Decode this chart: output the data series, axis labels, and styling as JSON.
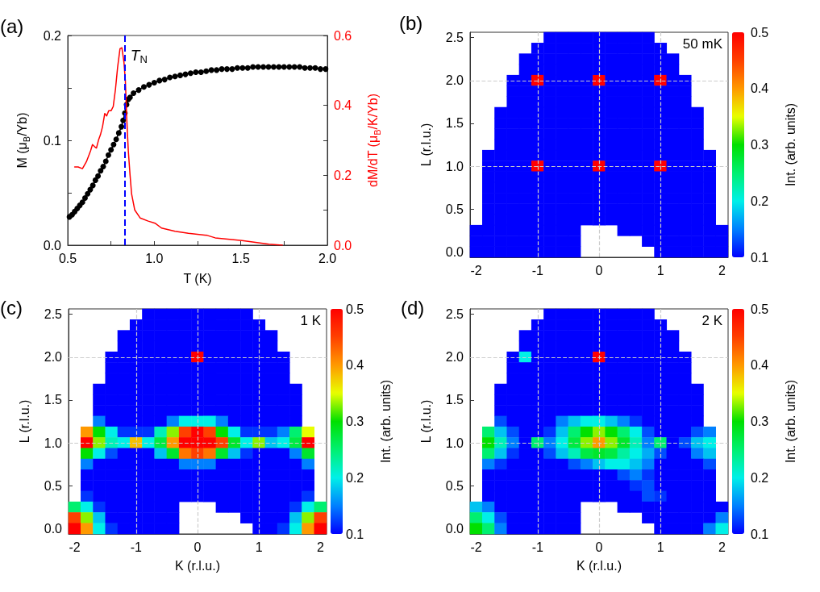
{
  "chart_data": [
    {
      "type": "line",
      "title": "(a)",
      "xlabel": "T (K)",
      "ylabel": "M (μ$_{B}$/Yb)",
      "y2label": "dM/dT (μ$_{B}$/K/Yb)",
      "xlim": [
        0.5,
        2.0
      ],
      "xticks": [
        0.5,
        {
          "value": 0.75,
          "label": null
        },
        {
          "value": 1,
          "label": "1.0"
        },
        {
          "value": 1.25,
          "label": null
        },
        1.5,
        {
          "value": 1.75,
          "label": null
        },
        {
          "value": 2,
          "label": "2.0"
        }
      ],
      "ylim": [
        0,
        0.2
      ],
      "yticks": [
        {
          "value": 0,
          "label": "0.0"
        },
        {
          "value": 0.05,
          "label": null
        },
        0.1,
        {
          "value": 0.15,
          "label": null
        },
        0.2
      ],
      "y2lim": [
        0,
        0.6
      ],
      "y2ticks": [
        {
          "value": 0,
          "label": "0.0"
        },
        {
          "value": 0.1,
          "label": null
        },
        0.2,
        {
          "value": 0.3,
          "label": null
        },
        0.4,
        {
          "value": 0.5,
          "label": null
        },
        0.6
      ],
      "series": [
        {
          "color": "#000000",
          "marker": "circle",
          "x": [
            0.51,
            0.525,
            0.54,
            0.555,
            0.57,
            0.585,
            0.6,
            0.615,
            0.63,
            0.645,
            0.66,
            0.675,
            0.69,
            0.705,
            0.72,
            0.735,
            0.75,
            0.765,
            0.78,
            0.795,
            0.81,
            0.82,
            0.83,
            0.84,
            0.85,
            0.86,
            0.88,
            0.91,
            0.94,
            0.97,
            1.0,
            1.03,
            1.06,
            1.09,
            1.12,
            1.15,
            1.18,
            1.21,
            1.24,
            1.27,
            1.3,
            1.33,
            1.36,
            1.39,
            1.42,
            1.45,
            1.48,
            1.51,
            1.54,
            1.57,
            1.6,
            1.63,
            1.66,
            1.69,
            1.72,
            1.75,
            1.78,
            1.81,
            1.84,
            1.87,
            1.9,
            1.93,
            1.96,
            1.99
          ],
          "values": [
            0.027,
            0.029,
            0.032,
            0.035,
            0.038,
            0.041,
            0.045,
            0.049,
            0.053,
            0.057,
            0.062,
            0.066,
            0.071,
            0.075,
            0.08,
            0.086,
            0.091,
            0.096,
            0.101,
            0.107,
            0.113,
            0.119,
            0.126,
            0.134,
            0.139,
            0.141,
            0.145,
            0.148,
            0.151,
            0.153,
            0.155,
            0.157,
            0.158,
            0.16,
            0.161,
            0.162,
            0.163,
            0.164,
            0.165,
            0.165,
            0.166,
            0.167,
            0.167,
            0.168,
            0.168,
            0.168,
            0.169,
            0.169,
            0.169,
            0.17,
            0.17,
            0.17,
            0.17,
            0.17,
            0.17,
            0.17,
            0.17,
            0.17,
            0.17,
            0.169,
            0.169,
            0.169,
            0.168,
            0.168
          ]
        },
        {
          "color": "#ff0000",
          "marker": "none",
          "axis": "y2",
          "x": [
            0.54,
            0.56,
            0.585,
            0.608,
            0.632,
            0.643,
            0.655,
            0.666,
            0.678,
            0.689,
            0.701,
            0.714,
            0.725,
            0.737,
            0.751,
            0.763,
            0.776,
            0.788,
            0.802,
            0.813,
            0.825,
            0.833,
            0.841,
            0.85,
            0.86,
            0.869,
            0.887,
            0.918,
            0.965,
            1.004,
            1.042,
            1.12,
            1.197,
            1.306,
            1.352,
            1.507,
            1.585,
            1.662,
            1.74
          ],
          "values": [
            0.224,
            0.224,
            0.219,
            0.239,
            0.27,
            0.288,
            0.282,
            0.278,
            0.301,
            0.316,
            0.339,
            0.377,
            0.37,
            0.385,
            0.385,
            0.397,
            0.447,
            0.508,
            0.562,
            0.565,
            0.523,
            0.47,
            0.362,
            0.27,
            0.201,
            0.147,
            0.101,
            0.078,
            0.069,
            0.063,
            0.049,
            0.04,
            0.034,
            0.028,
            0.021,
            0.013,
            0.008,
            0.003,
            0
          ]
        }
      ],
      "ref_lines": [
        {
          "axis": "x",
          "value": 0.83,
          "label": "T$_{N}$",
          "color": "#0000ff",
          "line_style": "dashed"
        }
      ]
    },
    {
      "type": "heatmap",
      "title": "(b)",
      "ylabel": "L (r.l.u.)",
      "clabel": "Int. (arb. units)",
      "annotations": [
        "50 mK"
      ],
      "categories": [
        "-2",
        null,
        null,
        null,
        null,
        "-1",
        null,
        null,
        null,
        null,
        "0",
        null,
        null,
        null,
        null,
        "1",
        null,
        null,
        null,
        null,
        "2"
      ],
      "y_categories": [
        "2.5",
        null,
        null,
        null,
        "2.0",
        null,
        null,
        null,
        "1.5",
        null,
        null,
        null,
        "1.0",
        null,
        null,
        null,
        "0.5",
        null,
        null,
        null,
        "0.0"
      ],
      "clim": [
        0.1,
        0.5
      ],
      "cticks": [
        0.1,
        0.2,
        0.3,
        0.4,
        0.5
      ],
      "ref_lines": [
        {
          "axis": "x",
          "value": "-1",
          "color": "#cccccc",
          "line_style": "dashed"
        },
        {
          "axis": "x",
          "value": "0",
          "color": "#cccccc",
          "line_style": "dashed"
        },
        {
          "axis": "x",
          "value": "1",
          "color": "#cccccc",
          "line_style": "dashed"
        },
        {
          "axis": "y",
          "value": "1.0",
          "color": "#cccccc",
          "line_style": "dashed"
        },
        {
          "axis": "y",
          "value": "2.0",
          "color": "#cccccc",
          "line_style": "dashed"
        }
      ],
      "cells": [
        [
          null,
          null,
          null,
          null,
          null,
          null,
          0.1,
          0.1,
          0.1,
          0.1,
          0.1,
          0.1,
          0.1,
          0.1,
          0.1,
          null,
          null,
          null,
          null,
          null,
          null
        ],
        [
          null,
          null,
          null,
          null,
          null,
          0.1,
          0.1,
          0.1,
          0.1,
          0.1,
          0.1,
          0.1,
          0.1,
          0.1,
          0.1,
          0.1,
          null,
          null,
          null,
          null,
          null
        ],
        [
          null,
          null,
          null,
          null,
          0.1,
          0.1,
          0.1,
          0.1,
          0.1,
          0.1,
          0.1,
          0.1,
          0.1,
          0.1,
          0.1,
          0.1,
          0.1,
          null,
          null,
          null,
          null
        ],
        [
          null,
          null,
          null,
          null,
          0.1,
          0.1,
          0.1,
          0.1,
          0.1,
          0.1,
          0.1,
          0.1,
          0.1,
          0.1,
          0.1,
          0.1,
          0.1,
          null,
          null,
          null,
          null
        ],
        [
          null,
          null,
          null,
          0.1,
          0.1,
          0.5,
          0.1,
          0.1,
          0.1,
          0.1,
          0.5,
          0.1,
          0.1,
          0.1,
          0.1,
          0.5,
          0.1,
          0.1,
          null,
          null,
          null
        ],
        [
          null,
          null,
          null,
          0.1,
          0.1,
          0.1,
          0.1,
          0.1,
          0.1,
          0.1,
          0.1,
          0.1,
          0.1,
          0.1,
          0.1,
          0.1,
          0.1,
          0.1,
          null,
          null,
          null
        ],
        [
          null,
          null,
          null,
          0.1,
          0.1,
          0.1,
          0.1,
          0.1,
          0.1,
          0.1,
          0.1,
          0.1,
          0.1,
          0.1,
          0.1,
          0.1,
          0.1,
          0.1,
          null,
          null,
          null
        ],
        [
          null,
          null,
          0.1,
          0.1,
          0.1,
          0.1,
          0.1,
          0.1,
          0.1,
          0.1,
          0.1,
          0.1,
          0.1,
          0.1,
          0.1,
          0.1,
          0.1,
          0.1,
          0.1,
          null,
          null
        ],
        [
          null,
          null,
          0.1,
          0.1,
          0.1,
          0.1,
          0.1,
          0.1,
          0.1,
          0.1,
          0.1,
          0.1,
          0.1,
          0.1,
          0.1,
          0.1,
          0.1,
          0.1,
          0.1,
          null,
          null
        ],
        [
          null,
          null,
          0.1,
          0.1,
          0.1,
          0.1,
          0.1,
          0.1,
          0.1,
          0.1,
          0.1,
          0.1,
          0.1,
          0.1,
          0.1,
          0.1,
          0.1,
          0.1,
          0.1,
          null,
          null
        ],
        [
          null,
          null,
          0.1,
          0.1,
          0.1,
          0.1,
          0.1,
          0.1,
          0.1,
          0.1,
          0.1,
          0.1,
          0.1,
          0.1,
          0.1,
          0.1,
          0.1,
          0.1,
          0.1,
          null,
          null
        ],
        [
          null,
          0.1,
          0.1,
          0.1,
          0.1,
          0.1,
          0.1,
          0.1,
          0.1,
          0.1,
          0.1,
          0.1,
          0.1,
          0.1,
          0.1,
          0.1,
          0.1,
          0.1,
          0.1,
          0.1,
          null
        ],
        [
          null,
          0.1,
          0.1,
          0.1,
          0.1,
          0.5,
          0.1,
          0.1,
          0.1,
          0.1,
          0.5,
          0.1,
          0.1,
          0.1,
          0.1,
          0.5,
          0.1,
          0.1,
          0.1,
          0.1,
          null
        ],
        [
          null,
          0.1,
          0.1,
          0.1,
          0.1,
          0.1,
          0.1,
          0.1,
          0.1,
          0.1,
          0.1,
          0.1,
          0.1,
          0.1,
          0.1,
          0.1,
          0.1,
          0.1,
          0.1,
          0.1,
          null
        ],
        [
          null,
          0.1,
          0.1,
          0.1,
          0.1,
          0.1,
          0.1,
          0.1,
          0.1,
          0.1,
          0.1,
          0.1,
          0.1,
          0.1,
          0.1,
          0.1,
          0.1,
          0.1,
          0.1,
          0.1,
          null
        ],
        [
          null,
          0.1,
          0.1,
          0.1,
          0.1,
          0.1,
          0.1,
          0.1,
          0.1,
          0.1,
          0.1,
          0.1,
          0.1,
          0.1,
          0.1,
          0.1,
          0.1,
          0.1,
          0.1,
          0.1,
          null
        ],
        [
          null,
          0.1,
          0.1,
          0.1,
          0.1,
          0.1,
          0.1,
          0.1,
          0.1,
          0.1,
          0.1,
          0.1,
          0.1,
          0.1,
          0.1,
          0.1,
          0.1,
          0.1,
          0.1,
          0.1,
          null
        ],
        [
          null,
          0.1,
          0.1,
          0.1,
          0.1,
          0.1,
          0.1,
          0.1,
          0.1,
          0.1,
          0.1,
          0.1,
          0.1,
          0.1,
          0.1,
          0.1,
          0.1,
          0.1,
          0.1,
          0.1,
          null
        ],
        [
          0.1,
          0.1,
          0.1,
          0.1,
          0.1,
          0.1,
          0.1,
          0.1,
          0.1,
          null,
          null,
          null,
          0.1,
          0.1,
          0.1,
          0.1,
          0.1,
          0.1,
          0.1,
          0.1,
          0.1
        ],
        [
          0.1,
          0.1,
          0.1,
          0.1,
          0.1,
          0.1,
          0.1,
          0.1,
          0.1,
          null,
          null,
          null,
          null,
          null,
          0.1,
          0.1,
          0.1,
          0.1,
          0.1,
          0.1,
          0.1
        ],
        [
          0.1,
          0.1,
          0.1,
          0.1,
          0.1,
          0.1,
          0.1,
          0.1,
          0.1,
          null,
          null,
          null,
          null,
          null,
          null,
          0.1,
          0.1,
          0.1,
          0.1,
          0.1,
          0.1
        ]
      ]
    },
    {
      "type": "heatmap",
      "title": "(c)",
      "xlabel": "K (r.l.u.)",
      "ylabel": "L (r.l.u.)",
      "clabel": "Int. (arb. units)",
      "annotations": [
        "1 K"
      ],
      "categories": [
        "-2",
        null,
        null,
        null,
        null,
        "-1",
        null,
        null,
        null,
        null,
        "0",
        null,
        null,
        null,
        null,
        "1",
        null,
        null,
        null,
        null,
        "2"
      ],
      "y_categories": [
        "2.5",
        null,
        null,
        null,
        "2.0",
        null,
        null,
        null,
        "1.5",
        null,
        null,
        null,
        "1.0",
        null,
        null,
        null,
        "0.5",
        null,
        null,
        null,
        "0.0"
      ],
      "clim": [
        0.1,
        0.5
      ],
      "cticks": [
        0.1,
        0.2,
        0.3,
        0.4,
        0.5
      ],
      "ref_lines": [
        {
          "axis": "x",
          "value": "-1",
          "color": "#cccccc",
          "line_style": "dashed"
        },
        {
          "axis": "x",
          "value": "0",
          "color": "#cccccc",
          "line_style": "dashed"
        },
        {
          "axis": "x",
          "value": "1",
          "color": "#cccccc",
          "line_style": "dashed"
        },
        {
          "axis": "y",
          "value": "1.0",
          "color": "#cccccc",
          "line_style": "dashed"
        },
        {
          "axis": "y",
          "value": "2.0",
          "color": "#cccccc",
          "line_style": "dashed"
        }
      ],
      "cells": [
        [
          null,
          null,
          null,
          null,
          null,
          null,
          0.1,
          0.1,
          0.1,
          0.1,
          0.1,
          0.1,
          0.1,
          0.1,
          0.1,
          null,
          null,
          null,
          null,
          null,
          null
        ],
        [
          null,
          null,
          null,
          null,
          null,
          0.1,
          0.1,
          0.1,
          0.1,
          0.1,
          0.1,
          0.1,
          0.1,
          0.1,
          0.1,
          0.1,
          null,
          null,
          null,
          null,
          null
        ],
        [
          null,
          null,
          null,
          null,
          0.1,
          0.1,
          0.1,
          0.1,
          0.1,
          0.1,
          0.1,
          0.1,
          0.1,
          0.1,
          0.1,
          0.1,
          0.1,
          null,
          null,
          null,
          null
        ],
        [
          null,
          null,
          null,
          null,
          0.1,
          0.1,
          0.1,
          0.1,
          0.1,
          0.1,
          0.1,
          0.1,
          0.1,
          0.1,
          0.1,
          0.1,
          0.1,
          null,
          null,
          null,
          null
        ],
        [
          null,
          null,
          null,
          0.1,
          0.1,
          0.1,
          0.1,
          0.1,
          0.1,
          0.1,
          0.5,
          0.1,
          0.1,
          0.1,
          0.1,
          0.1,
          0.1,
          0.1,
          null,
          null,
          null
        ],
        [
          null,
          null,
          null,
          0.1,
          0.1,
          0.1,
          0.1,
          0.1,
          0.1,
          0.1,
          0.1,
          0.1,
          0.1,
          0.1,
          0.1,
          0.1,
          0.1,
          0.1,
          null,
          null,
          null
        ],
        [
          null,
          null,
          null,
          0.1,
          0.1,
          0.1,
          0.1,
          0.1,
          0.1,
          0.1,
          0.1,
          0.1,
          0.1,
          0.1,
          0.1,
          0.1,
          0.1,
          0.1,
          null,
          null,
          null
        ],
        [
          null,
          null,
          0.1,
          0.1,
          0.1,
          0.1,
          0.1,
          0.1,
          0.1,
          0.1,
          0.1,
          0.1,
          0.1,
          0.1,
          0.1,
          0.1,
          0.1,
          0.1,
          0.1,
          null,
          null
        ],
        [
          null,
          null,
          0.1,
          0.1,
          0.1,
          0.1,
          0.1,
          0.1,
          0.1,
          0.1,
          0.1,
          0.1,
          0.1,
          0.1,
          0.1,
          0.1,
          0.1,
          0.1,
          0.1,
          null,
          null
        ],
        [
          null,
          null,
          0.1,
          0.1,
          0.1,
          0.1,
          0.1,
          0.1,
          0.1,
          0.1,
          0.1,
          0.1,
          0.1,
          0.1,
          0.1,
          0.1,
          0.1,
          0.1,
          0.1,
          null,
          null
        ],
        [
          null,
          null,
          0.15,
          0.1,
          0.1,
          0.1,
          0.1,
          0.1,
          0.15,
          0.2,
          0.2,
          0.2,
          0.15,
          0.1,
          0.1,
          0.1,
          0.1,
          0.1,
          0.1,
          null,
          null
        ],
        [
          null,
          0.4,
          0.3,
          0.2,
          0.12,
          0.12,
          0.12,
          0.22,
          0.33,
          0.45,
          0.5,
          0.45,
          0.3,
          0.2,
          0.12,
          0.12,
          0.12,
          0.15,
          0.25,
          0.35,
          null
        ],
        [
          null,
          0.5,
          0.33,
          0.22,
          0.2,
          0.38,
          0.2,
          0.27,
          0.4,
          0.5,
          0.5,
          0.5,
          0.45,
          0.28,
          0.2,
          0.33,
          0.18,
          0.2,
          0.27,
          0.5,
          null
        ],
        [
          null,
          0.3,
          0.2,
          0.13,
          0.1,
          0.1,
          0.1,
          0.18,
          0.28,
          0.42,
          0.45,
          0.42,
          0.28,
          0.18,
          0.12,
          0.1,
          0.1,
          0.1,
          0.15,
          0.28,
          null
        ],
        [
          null,
          0.15,
          0.1,
          0.1,
          0.1,
          0.1,
          0.1,
          0.1,
          0.1,
          0.15,
          0.15,
          0.15,
          0.1,
          0.1,
          0.1,
          0.1,
          0.1,
          0.1,
          0.1,
          0.15,
          null
        ],
        [
          null,
          0.1,
          0.1,
          0.1,
          0.1,
          0.1,
          0.1,
          0.1,
          0.1,
          0.1,
          0.1,
          0.1,
          0.1,
          0.1,
          0.1,
          0.1,
          0.1,
          0.1,
          0.1,
          0.1,
          null
        ],
        [
          null,
          0.1,
          0.1,
          0.1,
          0.1,
          0.1,
          0.1,
          0.1,
          0.1,
          0.1,
          0.1,
          0.1,
          0.1,
          0.1,
          0.1,
          0.1,
          0.1,
          0.1,
          0.1,
          0.1,
          null
        ],
        [
          null,
          0.12,
          0.1,
          0.1,
          0.1,
          0.1,
          0.1,
          0.1,
          0.1,
          0.1,
          0.1,
          0.1,
          0.1,
          0.1,
          0.1,
          0.1,
          0.1,
          0.1,
          0.1,
          0.12,
          null
        ],
        [
          0.25,
          0.2,
          0.12,
          0.1,
          0.1,
          0.1,
          0.1,
          0.1,
          0.1,
          null,
          null,
          null,
          0.1,
          0.1,
          0.1,
          0.1,
          0.1,
          0.1,
          0.12,
          0.2,
          0.25
        ],
        [
          0.45,
          0.33,
          0.18,
          0.1,
          0.1,
          0.1,
          0.1,
          0.1,
          0.1,
          null,
          null,
          null,
          null,
          null,
          0.1,
          0.1,
          0.1,
          0.1,
          0.18,
          0.33,
          0.45
        ],
        [
          0.5,
          0.4,
          0.2,
          0.12,
          0.1,
          0.1,
          0.1,
          0.1,
          0.1,
          null,
          null,
          null,
          null,
          null,
          null,
          0.1,
          0.1,
          0.12,
          0.2,
          0.4,
          0.5
        ]
      ]
    },
    {
      "type": "heatmap",
      "title": "(d)",
      "xlabel": "K (r.l.u.)",
      "ylabel": "L (r.l.u.)",
      "clabel": "Int. (arb. units)",
      "annotations": [
        "2 K"
      ],
      "categories": [
        "-2",
        null,
        null,
        null,
        null,
        "-1",
        null,
        null,
        null,
        null,
        "0",
        null,
        null,
        null,
        null,
        "1",
        null,
        null,
        null,
        null,
        "2"
      ],
      "y_categories": [
        "2.5",
        null,
        null,
        null,
        "2.0",
        null,
        null,
        null,
        "1.5",
        null,
        null,
        null,
        "1.0",
        null,
        null,
        null,
        "0.5",
        null,
        null,
        null,
        "0.0"
      ],
      "clim": [
        0.1,
        0.5
      ],
      "cticks": [
        0.1,
        0.2,
        0.3,
        0.4,
        0.5
      ],
      "ref_lines": [
        {
          "axis": "x",
          "value": "-1",
          "color": "#cccccc",
          "line_style": "dashed"
        },
        {
          "axis": "x",
          "value": "0",
          "color": "#cccccc",
          "line_style": "dashed"
        },
        {
          "axis": "x",
          "value": "1",
          "color": "#cccccc",
          "line_style": "dashed"
        },
        {
          "axis": "y",
          "value": "1.0",
          "color": "#cccccc",
          "line_style": "dashed"
        },
        {
          "axis": "y",
          "value": "2.0",
          "color": "#cccccc",
          "line_style": "dashed"
        }
      ],
      "cells": [
        [
          null,
          null,
          null,
          null,
          null,
          null,
          0.1,
          0.1,
          0.1,
          0.1,
          0.1,
          0.1,
          0.1,
          0.1,
          0.1,
          null,
          null,
          null,
          null,
          null,
          null
        ],
        [
          null,
          null,
          null,
          null,
          null,
          0.1,
          0.1,
          0.1,
          0.1,
          0.1,
          0.1,
          0.1,
          0.1,
          0.1,
          0.1,
          0.1,
          null,
          null,
          null,
          null,
          null
        ],
        [
          null,
          null,
          null,
          null,
          0.1,
          0.1,
          0.1,
          0.1,
          0.1,
          0.1,
          0.1,
          0.1,
          0.1,
          0.1,
          0.1,
          0.1,
          0.1,
          null,
          null,
          null,
          null
        ],
        [
          null,
          null,
          null,
          null,
          0.1,
          0.1,
          0.1,
          0.1,
          0.1,
          0.1,
          0.1,
          0.1,
          0.1,
          0.1,
          0.1,
          0.1,
          0.1,
          null,
          null,
          null,
          null
        ],
        [
          null,
          null,
          null,
          0.1,
          0.2,
          0.1,
          0.1,
          0.1,
          0.1,
          0.1,
          0.5,
          0.1,
          0.1,
          0.1,
          0.1,
          0.1,
          0.1,
          0.1,
          null,
          null,
          null
        ],
        [
          null,
          null,
          null,
          0.1,
          0.1,
          0.1,
          0.1,
          0.1,
          0.1,
          0.1,
          0.1,
          0.1,
          0.1,
          0.1,
          0.1,
          0.1,
          0.1,
          0.1,
          null,
          null,
          null
        ],
        [
          null,
          null,
          null,
          0.1,
          0.1,
          0.1,
          0.1,
          0.1,
          0.1,
          0.1,
          0.1,
          0.1,
          0.1,
          0.1,
          0.1,
          0.1,
          0.1,
          0.1,
          null,
          null,
          null
        ],
        [
          null,
          null,
          0.1,
          0.1,
          0.1,
          0.1,
          0.1,
          0.1,
          0.1,
          0.1,
          0.1,
          0.1,
          0.1,
          0.1,
          0.1,
          0.1,
          0.1,
          0.1,
          0.1,
          null,
          null
        ],
        [
          null,
          null,
          0.1,
          0.1,
          0.1,
          0.1,
          0.1,
          0.1,
          0.1,
          0.1,
          0.1,
          0.1,
          0.1,
          0.1,
          0.1,
          0.1,
          0.1,
          0.1,
          0.1,
          null,
          null
        ],
        [
          null,
          null,
          0.1,
          0.1,
          0.1,
          0.1,
          0.1,
          0.1,
          0.1,
          0.1,
          0.1,
          0.1,
          0.1,
          0.1,
          0.1,
          0.1,
          0.1,
          0.1,
          0.1,
          null,
          null
        ],
        [
          null,
          null,
          0.13,
          0.1,
          0.1,
          0.1,
          0.1,
          0.15,
          0.18,
          0.2,
          0.2,
          0.18,
          0.15,
          0.12,
          0.1,
          0.1,
          0.1,
          0.1,
          0.1,
          null,
          null
        ],
        [
          null,
          0.25,
          0.18,
          0.13,
          0.1,
          0.1,
          0.12,
          0.18,
          0.25,
          0.3,
          0.33,
          0.3,
          0.25,
          0.2,
          0.13,
          0.1,
          0.1,
          0.1,
          0.13,
          0.15,
          null
        ],
        [
          null,
          0.3,
          0.22,
          0.15,
          0.1,
          0.25,
          0.15,
          0.2,
          0.27,
          0.33,
          0.4,
          0.33,
          0.28,
          0.22,
          0.15,
          0.25,
          0.1,
          0.13,
          0.18,
          0.2,
          null
        ],
        [
          null,
          0.25,
          0.18,
          0.12,
          0.1,
          0.1,
          0.13,
          0.18,
          0.22,
          0.27,
          0.28,
          0.27,
          0.23,
          0.2,
          0.17,
          0.13,
          0.1,
          0.1,
          0.15,
          0.18,
          null
        ],
        [
          null,
          0.15,
          0.12,
          0.1,
          0.1,
          0.1,
          0.1,
          0.1,
          0.13,
          0.15,
          0.18,
          0.2,
          0.2,
          0.18,
          0.15,
          0.1,
          0.1,
          0.1,
          0.1,
          0.13,
          null
        ],
        [
          null,
          0.1,
          0.1,
          0.1,
          0.1,
          0.1,
          0.1,
          0.1,
          0.1,
          0.1,
          0.1,
          0.1,
          0.13,
          0.15,
          0.12,
          0.1,
          0.1,
          0.1,
          0.1,
          0.1,
          null
        ],
        [
          null,
          0.1,
          0.1,
          0.1,
          0.1,
          0.1,
          0.1,
          0.1,
          0.1,
          0.1,
          0.1,
          0.1,
          0.1,
          0.12,
          0.13,
          0.1,
          0.1,
          0.1,
          0.1,
          0.1,
          null
        ],
        [
          null,
          0.1,
          0.1,
          0.1,
          0.1,
          0.1,
          0.1,
          0.1,
          0.1,
          0.1,
          0.1,
          0.1,
          0.1,
          0.1,
          0.13,
          0.12,
          0.1,
          0.1,
          0.1,
          0.1,
          null
        ],
        [
          0.18,
          0.15,
          0.1,
          0.1,
          0.1,
          0.1,
          0.1,
          0.1,
          0.1,
          null,
          null,
          null,
          0.1,
          0.1,
          0.1,
          0.1,
          0.1,
          0.1,
          0.1,
          0.1,
          0.1
        ],
        [
          0.25,
          0.2,
          0.13,
          0.1,
          0.1,
          0.1,
          0.1,
          0.1,
          0.1,
          null,
          null,
          null,
          null,
          null,
          0.1,
          0.1,
          0.1,
          0.1,
          0.1,
          0.1,
          0.15
        ],
        [
          0.3,
          0.25,
          0.15,
          0.1,
          0.1,
          0.1,
          0.1,
          0.1,
          0.1,
          null,
          null,
          null,
          null,
          null,
          null,
          0.1,
          0.1,
          0.1,
          0.1,
          0.15,
          0.2
        ]
      ]
    }
  ]
}
